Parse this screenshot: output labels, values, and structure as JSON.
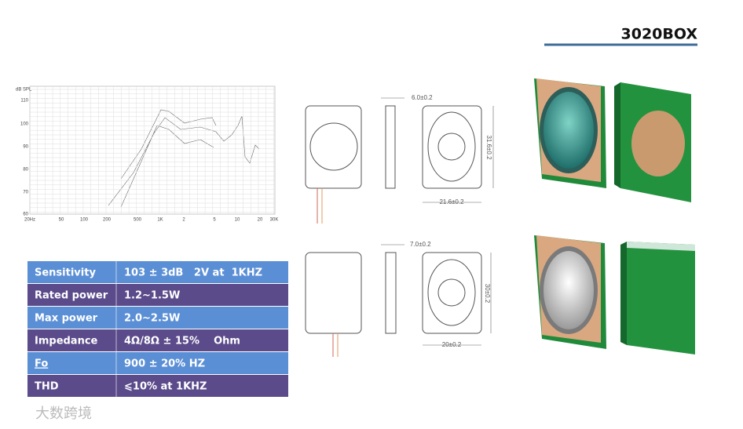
{
  "header": {
    "title": "3020BOX"
  },
  "graph": {
    "y_unit": "dB SPL",
    "y_labels": [
      "110",
      "100",
      "90",
      "80",
      "70",
      "60"
    ],
    "x_labels": [
      "20Hz",
      "50",
      "100",
      "200",
      "500",
      "1K",
      "2",
      "5",
      "10",
      "20",
      "30K"
    ]
  },
  "dimensions": {
    "top": {
      "thickness": "6.0±0.2",
      "height": "31.6±0.2",
      "width": "21.6±0.2"
    },
    "bottom": {
      "thickness": "7.0±0.2",
      "height": "30±0.2",
      "width": "20±0.2"
    }
  },
  "table": {
    "rows": [
      [
        "Sensitivity",
        "103 ± 3dB   2V at  1KHZ"
      ],
      [
        "Rated power",
        "1.2~1.5W"
      ],
      [
        "Max power",
        "2.0~2.5W"
      ],
      [
        "Impedance",
        "4Ω/8Ω ± 15%    Ohm"
      ],
      [
        "Fo",
        "900 ± 20% HZ"
      ],
      [
        "THD",
        "⩽10% at 1KHZ"
      ]
    ]
  },
  "watermark": "大数跨境"
}
